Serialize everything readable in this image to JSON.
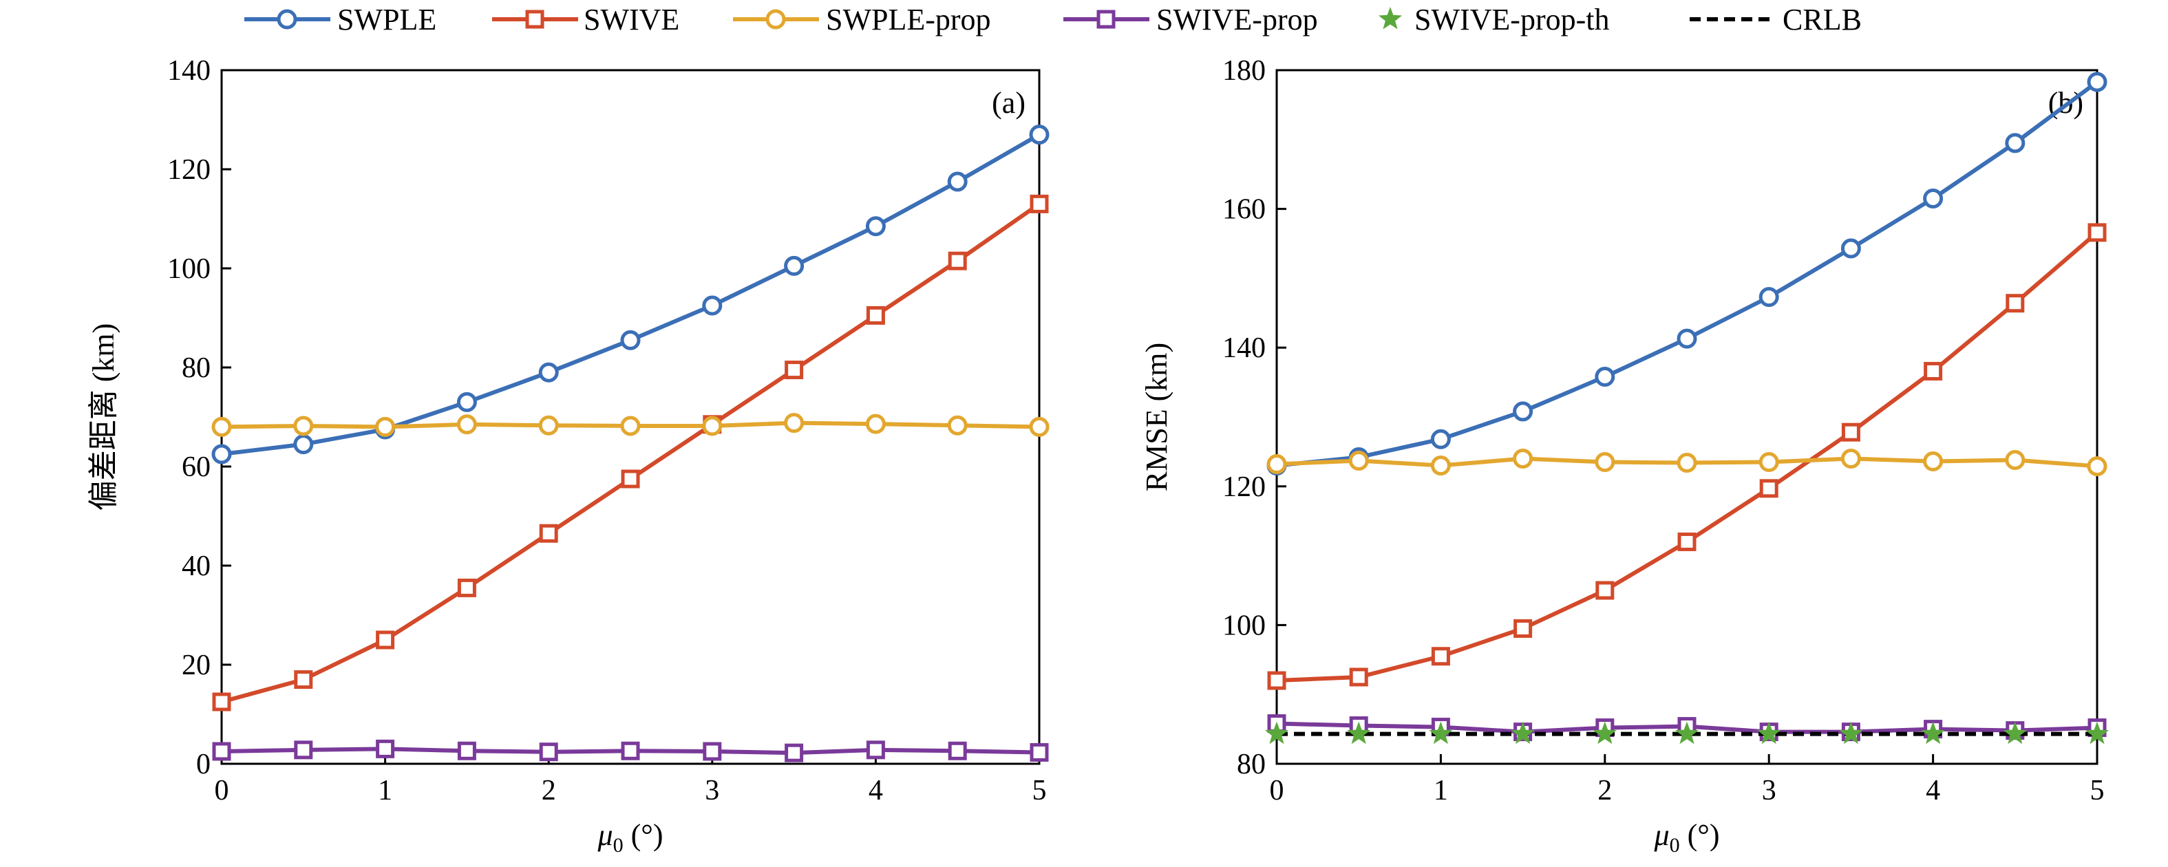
{
  "legend": [
    {
      "name": "SWPLE",
      "color": "#3b6fb6",
      "marker": "circle",
      "dash": false
    },
    {
      "name": "SWIVE",
      "color": "#d34a2a",
      "marker": "square",
      "dash": false
    },
    {
      "name": "SWPLE-prop",
      "color": "#e3a72f",
      "marker": "circle",
      "dash": false
    },
    {
      "name": "SWIVE-prop",
      "color": "#7a3a9a",
      "marker": "square",
      "dash": false
    },
    {
      "name": "SWIVE-prop-th",
      "color": "#5aa83c",
      "marker": "star",
      "dash": false
    },
    {
      "name": "CRLB",
      "color": "#000000",
      "marker": "none",
      "dash": true
    }
  ],
  "chart_data": [
    {
      "type": "line",
      "panel_label": "(a)",
      "xlabel_symbol": "μ",
      "xlabel_sub": "0",
      "xlabel_unit": " (°)",
      "ylabel": "偏差距离 (km)",
      "xlim": [
        0,
        5
      ],
      "ylim": [
        0,
        140
      ],
      "xticks": [
        0,
        1,
        2,
        3,
        4,
        5
      ],
      "yticks": [
        0,
        20,
        40,
        60,
        80,
        100,
        120,
        140
      ],
      "x": [
        0,
        0.5,
        1,
        1.5,
        2,
        2.5,
        3,
        3.5,
        4,
        4.5,
        5
      ],
      "series": [
        {
          "name": "SWPLE",
          "values": [
            62.5,
            64.5,
            67.5,
            73,
            79,
            85.5,
            92.5,
            100.5,
            108.5,
            117.5,
            127
          ]
        },
        {
          "name": "SWIVE",
          "values": [
            12.5,
            17,
            25,
            35.5,
            46.5,
            57.5,
            68.5,
            79.5,
            90.5,
            101.5,
            113
          ]
        },
        {
          "name": "SWPLE-prop",
          "values": [
            68,
            68.2,
            68,
            68.5,
            68.3,
            68.2,
            68.2,
            68.8,
            68.6,
            68.3,
            68
          ]
        },
        {
          "name": "SWIVE-prop",
          "values": [
            2.5,
            2.8,
            3,
            2.6,
            2.4,
            2.6,
            2.5,
            2.2,
            2.8,
            2.6,
            2.3
          ]
        }
      ]
    },
    {
      "type": "line",
      "panel_label": "(b)",
      "xlabel_symbol": "μ",
      "xlabel_sub": "0",
      "xlabel_unit": " (°)",
      "ylabel": "RMSE (km)",
      "xlim": [
        0,
        5
      ],
      "ylim": [
        80,
        180
      ],
      "xticks": [
        0,
        1,
        2,
        3,
        4,
        5
      ],
      "yticks": [
        80,
        100,
        120,
        140,
        160,
        180
      ],
      "x": [
        0,
        0.5,
        1,
        1.5,
        2,
        2.5,
        3,
        3.5,
        4,
        4.5,
        5
      ],
      "series": [
        {
          "name": "SWPLE",
          "values": [
            123,
            124.2,
            126.8,
            130.8,
            135.8,
            141.3,
            147.3,
            154.3,
            161.5,
            169.5,
            178.3
          ]
        },
        {
          "name": "SWIVE",
          "values": [
            92,
            92.5,
            95.5,
            99.5,
            105,
            112,
            119.7,
            127.8,
            136.6,
            146.4,
            156.6
          ]
        },
        {
          "name": "SWPLE-prop",
          "values": [
            123.2,
            123.7,
            123,
            124,
            123.5,
            123.4,
            123.5,
            124,
            123.6,
            123.8,
            122.9
          ]
        },
        {
          "name": "SWIVE-prop",
          "values": [
            85.8,
            85.5,
            85.3,
            84.6,
            85.2,
            85.4,
            84.6,
            84.6,
            85,
            84.8,
            85.2
          ]
        },
        {
          "name": "SWIVE-prop-th",
          "values": [
            84.3,
            84.3,
            84.3,
            84.3,
            84.3,
            84.3,
            84.3,
            84.3,
            84.3,
            84.3,
            84.3
          ]
        },
        {
          "name": "CRLB",
          "values": [
            84.3,
            84.3,
            84.3,
            84.3,
            84.3,
            84.3,
            84.3,
            84.3,
            84.3,
            84.3,
            84.3
          ]
        }
      ]
    }
  ]
}
